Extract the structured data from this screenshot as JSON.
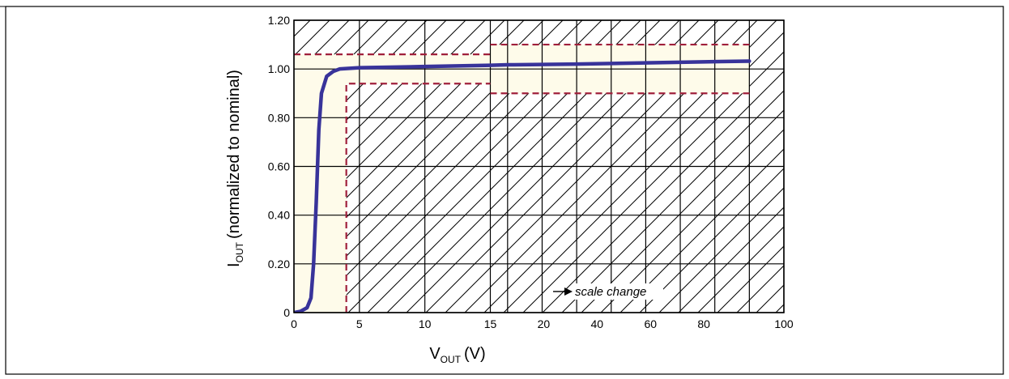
{
  "chart_data": {
    "type": "line",
    "title": "",
    "xlabel": {
      "main": "V",
      "sub": "OUT",
      "unit": "(V)"
    },
    "ylabel": {
      "main": "I",
      "sub": "OUT",
      "rest": "(normalized to nominal)"
    },
    "x_ticks": [
      "0",
      "5",
      "10",
      "15",
      "20",
      "40",
      "60",
      "80",
      "100"
    ],
    "y_ticks": [
      "0",
      "0.20",
      "0.40",
      "0.60",
      "0.80",
      "1.00",
      "1.20"
    ],
    "x_scale_note": "piecewise: linear 0–15 V; linear 15–100 V (scale change at 15)",
    "ylim": [
      0,
      1.2
    ],
    "grid": true,
    "series": [
      {
        "name": "",
        "color": "#38339a",
        "points": [
          [
            0,
            0
          ],
          [
            0.5,
            0.005
          ],
          [
            1.0,
            0.02
          ],
          [
            1.3,
            0.06
          ],
          [
            1.5,
            0.2
          ],
          [
            1.7,
            0.45
          ],
          [
            1.9,
            0.75
          ],
          [
            2.1,
            0.9
          ],
          [
            2.5,
            0.97
          ],
          [
            3.0,
            0.99
          ],
          [
            3.5,
            1.0
          ],
          [
            5,
            1.005
          ],
          [
            10,
            1.01
          ],
          [
            15,
            1.015
          ],
          [
            20,
            1.017
          ],
          [
            40,
            1.02
          ],
          [
            60,
            1.025
          ],
          [
            80,
            1.03
          ],
          [
            90,
            1.032
          ]
        ]
      }
    ],
    "limit_lines": {
      "color": "#a0203c",
      "segments": [
        [
          [
            0,
            1.06
          ],
          [
            15,
            1.06
          ]
        ],
        [
          [
            4.0,
            0
          ],
          [
            4.0,
            0.94
          ],
          [
            15,
            0.94
          ]
        ],
        [
          [
            15,
            1.1
          ],
          [
            90,
            1.1
          ]
        ],
        [
          [
            15,
            0.9
          ],
          [
            90,
            0.9
          ]
        ]
      ]
    },
    "allowed_region_color": "#fefbea",
    "annotations": [
      {
        "text": "scale change",
        "x": 22,
        "y": 0.04
      }
    ]
  },
  "colors": {
    "curve": "#38339a",
    "limit": "#a0203c",
    "allowed_fill": "#fefbea",
    "grid": "#000000"
  }
}
